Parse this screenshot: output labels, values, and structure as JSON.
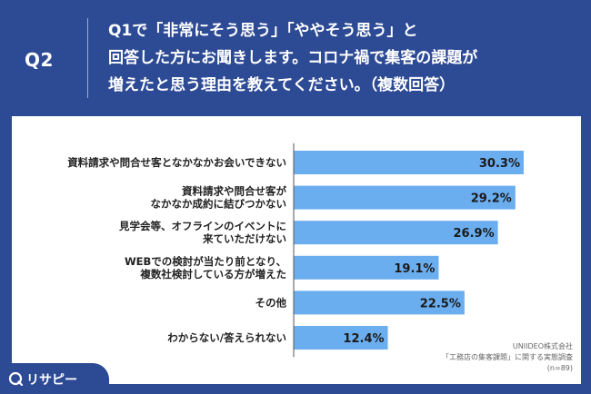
{
  "header": {
    "q_label": "Q2",
    "question_lines": [
      "Q1で「非常にそう思う」「ややそう思う」と",
      "回答した方にお聞きします。コロナ禍で集客の課題が",
      "増えたと思う理由を教えてください。（複数回答）"
    ]
  },
  "colors": {
    "background": "#2d4a94",
    "panel": "#ffffff",
    "bar": "#6aaef0",
    "axis": "#555555"
  },
  "chart_data": {
    "type": "bar",
    "orientation": "horizontal",
    "title": "",
    "xlabel": "",
    "ylabel": "",
    "unit": "%",
    "xlim": [
      0,
      30.3
    ],
    "categories": [
      [
        "資料請求や問合せ客となかなかお会いできない"
      ],
      [
        "資料請求や問合せ客が",
        "なかなか成約に結びつかない"
      ],
      [
        "見学会等、オフラインのイベントに",
        "来ていただけない"
      ],
      [
        "WEBでの検討が当たり前となり、",
        "複数社検討している方が増えた"
      ],
      [
        "その他"
      ],
      [
        "わからない/答えられない"
      ]
    ],
    "values": [
      30.3,
      29.2,
      26.9,
      19.1,
      22.5,
      12.4
    ],
    "value_labels": [
      "30.3%",
      "29.2%",
      "26.9%",
      "19.1%",
      "22.5%",
      "12.4%"
    ]
  },
  "footnote": {
    "lines": [
      "UNIIDEO株式会社",
      "「工務店の集客課題」に関する実態調査",
      "(n=89)"
    ]
  },
  "logo": {
    "text": "リサピー",
    "icon": "risapy-logo-icon"
  }
}
